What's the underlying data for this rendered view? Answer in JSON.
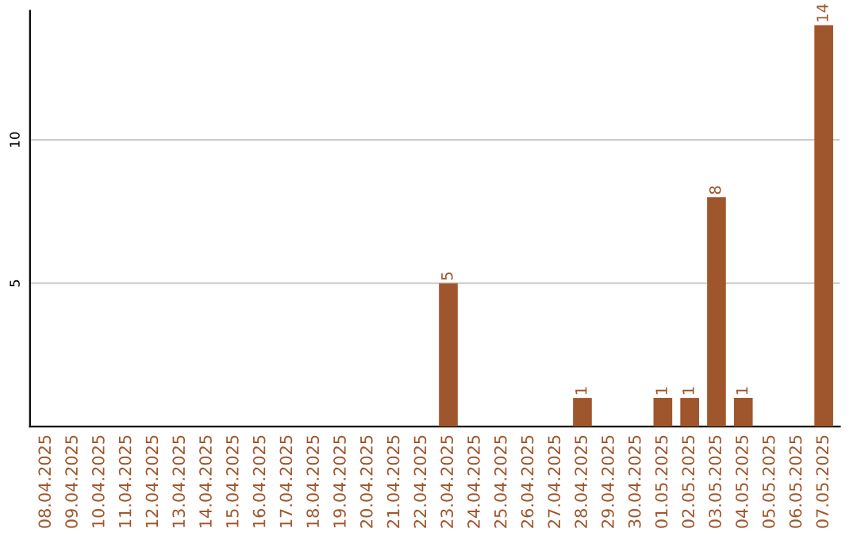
{
  "chart_data": {
    "type": "bar",
    "categories": [
      "08.04.2025",
      "09.04.2025",
      "10.04.2025",
      "11.04.2025",
      "12.04.2025",
      "13.04.2025",
      "14.04.2025",
      "15.04.2025",
      "16.04.2025",
      "17.04.2025",
      "18.04.2025",
      "19.04.2025",
      "20.04.2025",
      "21.04.2025",
      "22.04.2025",
      "23.04.2025",
      "24.04.2025",
      "25.04.2025",
      "26.04.2025",
      "27.04.2025",
      "28.04.2025",
      "29.04.2025",
      "30.04.2025",
      "01.05.2025",
      "02.05.2025",
      "03.05.2025",
      "04.05.2025",
      "05.05.2025",
      "06.05.2025",
      "07.05.2025"
    ],
    "values": [
      0,
      0,
      0,
      0,
      0,
      0,
      0,
      0,
      0,
      0,
      0,
      0,
      0,
      0,
      0,
      5,
      0,
      0,
      0,
      0,
      1,
      0,
      0,
      1,
      1,
      8,
      1,
      0,
      0,
      14
    ],
    "value_labels": [
      null,
      null,
      null,
      null,
      null,
      null,
      null,
      null,
      null,
      null,
      null,
      null,
      null,
      null,
      null,
      "5",
      null,
      null,
      null,
      null,
      "1",
      null,
      null,
      "1",
      "1",
      "8",
      "1",
      null,
      null,
      "14"
    ],
    "color": "#a0562c",
    "ylim": [
      0,
      14.5
    ],
    "yticks": [
      5,
      10
    ],
    "grid": "y",
    "legend": false
  }
}
